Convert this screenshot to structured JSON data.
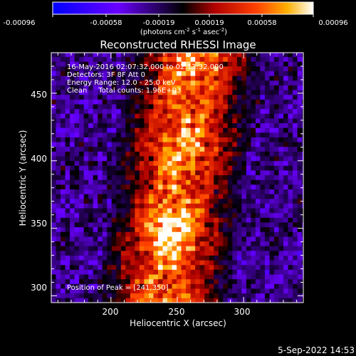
{
  "chart_data": {
    "type": "heatmap",
    "title": "Reconstructed RHESSI Image",
    "xlabel": "Heliocentric X (arcsec)",
    "ylabel": "Heliocentric Y (arcsec)",
    "xlim": [
      155,
      345
    ],
    "ylim": [
      295,
      480
    ],
    "x_ticks": [
      200,
      250,
      300
    ],
    "y_ticks": [
      300,
      350,
      400,
      450
    ],
    "colorbar": {
      "range": [
        -0.00096,
        0.00096
      ],
      "ticks": [
        "-0.00096",
        "-0.00058",
        "-0.00019",
        "0.00019",
        "0.00058",
        "0.00096"
      ],
      "unit_label": "(photons cm",
      "unit_exp1": "-2",
      "unit_mid": " s",
      "unit_exp2": "-1",
      "unit_tail": " asec",
      "unit_exp3": "-2",
      "unit_close": ")"
    },
    "info_lines": [
      "16-May-2016 02:07:32.000 to 02:13:32.000",
      "Detectors: 3F 8F  Att 0",
      "Energy Range: 12.0 - 25.0 keV",
      "Clean     Total counts: 1.96E+03"
    ],
    "peak_label": "Position of Peak = [241,350]",
    "peak": [
      241,
      350
    ],
    "emission_band": {
      "x_center_top": 262,
      "x_center_bottom": 238,
      "half_width": 38
    }
  },
  "footer": {
    "timestamp": "5-Sep-2022 14:53"
  }
}
